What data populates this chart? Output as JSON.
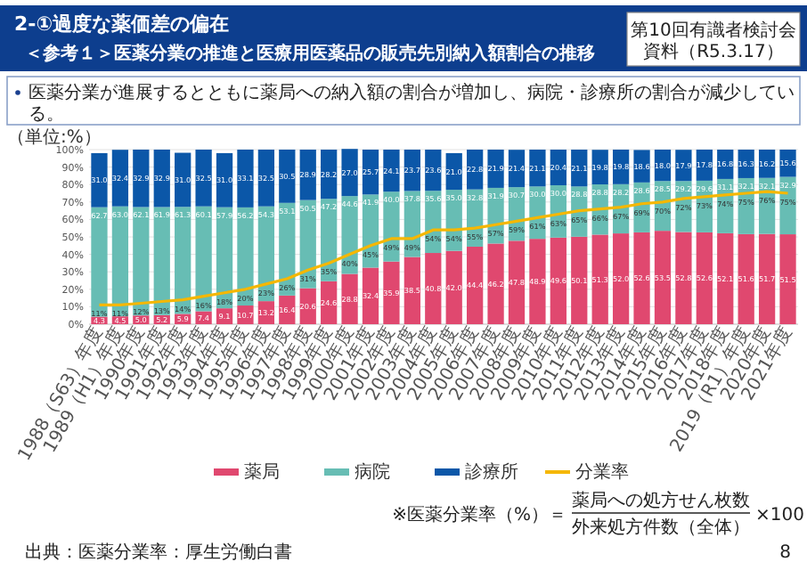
{
  "chart_data": {
    "type": "bar",
    "stacked": true,
    "title": "2-①過度な薬価差の偏在",
    "subtitle": "＜参考１＞医薬分業の推進と医療用医薬品の販売先別納入額割合の推移",
    "ylabel": "（単位:%）",
    "categories": [
      "1988（S63）年度",
      "1989（H1）年度",
      "1990年度",
      "1991年度",
      "1992年度",
      "1993年度",
      "1994年度",
      "1995年度",
      "1996年度",
      "1997年度",
      "1998年度",
      "1999年度",
      "2000年度",
      "2001年度",
      "2002年度",
      "2003年度",
      "2004年度",
      "2005年度",
      "2006年度",
      "2007年度",
      "2008年度",
      "2009年度",
      "2010年度",
      "2011年度",
      "2012年度",
      "2013年度",
      "2014年度",
      "2015年度",
      "2016年度",
      "2017年度",
      "2018年度",
      "2019（R1）年度",
      "2020年度",
      "2021年度"
    ],
    "series": [
      {
        "name": "薬局",
        "color": "#e0486f",
        "values": [
          4.3,
          4.5,
          5.0,
          5.2,
          5.9,
          7.4,
          9.1,
          10.7,
          13.2,
          16.4,
          20.6,
          24.6,
          28.8,
          32.4,
          35.9,
          38.5,
          40.8,
          42.0,
          44.4,
          46.2,
          47.8,
          48.9,
          49.6,
          50.1,
          51.3,
          52.0,
          52.6,
          53.5,
          52.8,
          52.6,
          52.1,
          51.6,
          51.7,
          51.5
        ],
        "value_labels": [
          "4.3",
          "4.5",
          "5.0",
          "5.2",
          "5.9",
          "7.4",
          "9.1",
          "10.7",
          "13.2",
          "16.4",
          "20.6",
          "24.6",
          "28.8",
          "32.4",
          "35.9",
          "38.5",
          "40.8",
          "42.0",
          "44.4",
          "46.2",
          "47.8",
          "48.9",
          "49.6",
          "50.1",
          "51.3",
          "52.0",
          "52.6",
          "53.5",
          "52.8",
          "52.6",
          "52.1",
          "51.6",
          "51.7",
          "51.5"
        ]
      },
      {
        "name": "病院",
        "color": "#67bdb4",
        "values": [
          62.7,
          63.0,
          62.1,
          61.9,
          61.3,
          60.1,
          57.9,
          56.2,
          54.3,
          53.1,
          50.5,
          47.2,
          44.6,
          41.9,
          40.0,
          37.8,
          35.6,
          35.0,
          32.8,
          31.9,
          30.7,
          30.0,
          30.0,
          28.8,
          28.8,
          28.2,
          28.6,
          28.5,
          29.2,
          29.6,
          31.1,
          32.1,
          32.1,
          32.9
        ],
        "value_labels": [
          "62.7",
          "63.0",
          "62.1",
          "61.9",
          "61.3",
          "60.1",
          "57.9",
          "56.2",
          "54.3",
          "53.1",
          "50.5",
          "47.2",
          "44.6",
          "41.9",
          "40.0",
          "37.8",
          "35.6",
          "35.0",
          "32.8",
          "31.9",
          "30.7",
          "30.0",
          "30.0",
          "28.8",
          "28.8",
          "28.2",
          "28.6",
          "28.5",
          "29.2",
          "29.6",
          "31.1",
          "32.1",
          "32.1",
          "32.9"
        ]
      },
      {
        "name": "診療所",
        "color": "#0b57a8",
        "values": [
          31.0,
          32.4,
          32.9,
          32.9,
          31.0,
          32.5,
          31.0,
          33.1,
          32.5,
          30.5,
          28.9,
          28.2,
          27.0,
          25.7,
          24.1,
          23.7,
          23.6,
          21.0,
          22.8,
          21.9,
          21.4,
          21.1,
          20.4,
          21.1,
          19.8,
          19.8,
          18.6,
          18.0,
          17.9,
          17.8,
          16.8,
          16.3,
          16.2,
          15.6
        ],
        "value_labels": [
          "31.0",
          "32.4",
          "32.9",
          "32.9",
          "31.0",
          "32.5",
          "31.0",
          "33.1",
          "32.5",
          "30.5",
          "28.9",
          "28.2",
          "27.0",
          "25.7",
          "24.1",
          "23.7",
          "23.6",
          "21.0",
          "22.8",
          "21.9",
          "21.4",
          "21.1",
          "20.4",
          "21.1",
          "19.8",
          "19.8",
          "18.6",
          "18.0",
          "17.9",
          "17.8",
          "16.8",
          "16.3",
          "16.2",
          "15.6"
        ]
      },
      {
        "name": "分業率",
        "type": "line",
        "color": "#f5b700",
        "values": [
          11,
          11,
          12,
          13,
          14,
          16,
          18,
          20,
          23,
          26,
          31,
          35,
          40,
          45,
          49,
          49,
          54,
          54,
          55,
          57,
          59,
          61,
          63,
          65,
          66,
          67,
          69,
          70,
          72,
          73,
          74,
          75,
          76,
          75
        ],
        "value_labels": [
          "11%",
          "11%",
          "12%",
          "13%",
          "14%",
          "16%",
          "18%",
          "20%",
          "23%",
          "26%",
          "31%",
          "35%",
          "40%",
          "45%",
          "49%",
          "49%",
          "54%",
          "54%",
          "55%",
          "57%",
          "59%",
          "61%",
          "63%",
          "65%",
          "66%",
          "67%",
          "69%",
          "70%",
          "72%",
          "73%",
          "74%",
          "75%",
          "76%",
          "75%"
        ]
      }
    ],
    "ylim": [
      0,
      100
    ],
    "yticks": [
      {
        "value": 0,
        "label": "0%"
      },
      {
        "value": 10,
        "label": "10%"
      },
      {
        "value": 20,
        "label": "20%"
      },
      {
        "value": 30,
        "label": "30%"
      },
      {
        "value": 40,
        "label": "40%"
      },
      {
        "value": 50,
        "label": "50%"
      },
      {
        "value": 60,
        "label": "60%"
      },
      {
        "value": 70,
        "label": "70%"
      },
      {
        "value": 80,
        "label": "80%"
      },
      {
        "value": 90,
        "label": "90%"
      },
      {
        "value": 100,
        "label": "100%"
      }
    ],
    "grid": "y",
    "legend": "bottom",
    "marker": "none",
    "annotations": [
      "第10回有識者検討会",
      "資料（R5.3.17）",
      "医薬分業が進展するとともに薬局への納入額の割合が増加し、病院・診療所の割合が減少している。",
      "※医薬分業率（%）＝",
      "薬局への処方せん枚数",
      "外来処方件数（全体）",
      "×100",
      "出典：医薬分業率：厚生労働白書",
      "8"
    ]
  }
}
